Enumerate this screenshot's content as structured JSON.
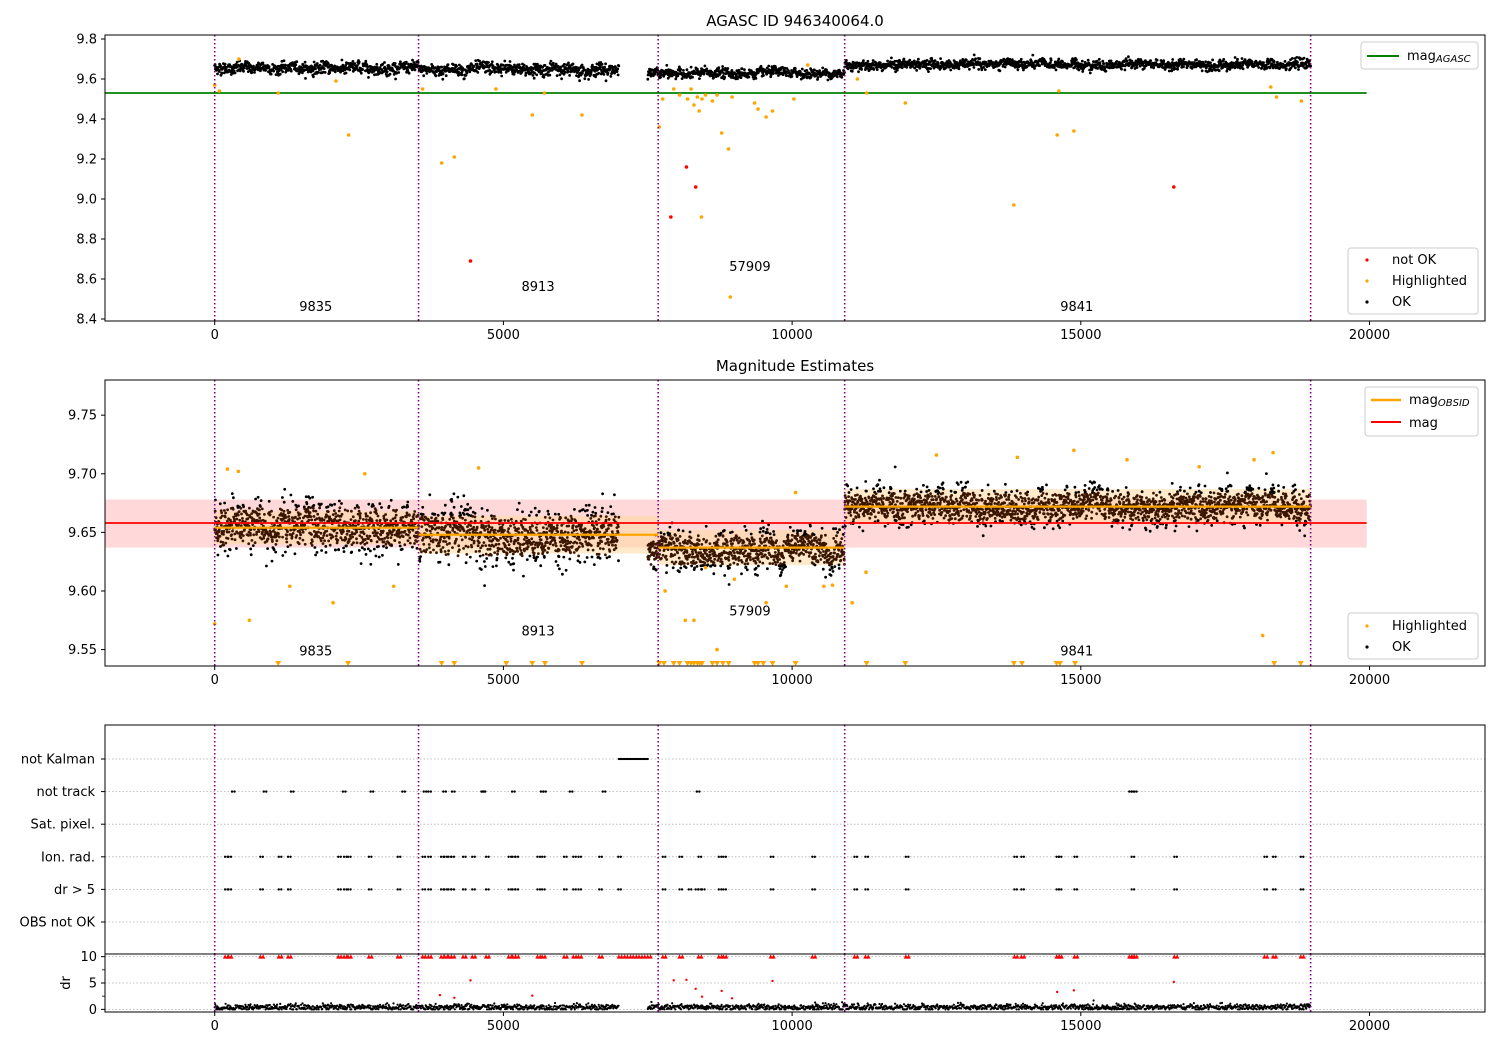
{
  "colors": {
    "ok": "#000000",
    "highlighted": "#ffa500",
    "not_ok": "#ff0000",
    "mag_agasc": "#008000",
    "mag_obsid": "#ffa500",
    "mag": "#ff0000",
    "obsid_boundary": "#800080",
    "band": "#ffc0c0",
    "band_obsid": "#ffd9a0"
  },
  "chart_data": [
    {
      "type": "scatter",
      "title": "AGASC ID 946340064.0",
      "xlabel": "",
      "ylabel": "",
      "xlim": [
        -1900,
        22000
      ],
      "ylim": [
        8.39,
        9.82
      ],
      "x_ticks": [
        0,
        5000,
        10000,
        15000,
        20000
      ],
      "x_tick_labels": [
        "0",
        "5000",
        "10000",
        "15000",
        "20000"
      ],
      "y_ticks": [
        8.4,
        8.6,
        8.8,
        9.0,
        9.2,
        9.4,
        9.6,
        9.8
      ],
      "y_tick_labels": [
        "8.4",
        "8.6",
        "8.8",
        "9.0",
        "9.2",
        "9.4",
        "9.6",
        "9.8"
      ],
      "obsid_boundaries": [
        0,
        3530,
        7680,
        10910,
        18980
      ],
      "obsid_labels": [
        {
          "text": "9835",
          "x": 1750,
          "y": 8.44
        },
        {
          "text": "8913",
          "x": 5600,
          "y": 8.54
        },
        {
          "text": "57909",
          "x": 9270,
          "y": 8.64
        },
        {
          "text": "9841",
          "x": 14930,
          "y": 8.44
        }
      ],
      "reference_lines": [
        {
          "name": "mag$_{AGASC}$",
          "y": 9.53,
          "x_range": [
            -1900,
            19950
          ],
          "color": "#008000"
        }
      ],
      "ok_segments": [
        {
          "x": [
            0,
            3530
          ],
          "mean": 9.655,
          "spread": 0.025
        },
        {
          "x": [
            3530,
            7000
          ],
          "mean": 9.648,
          "spread": 0.028
        },
        {
          "x": [
            7500,
            10910
          ],
          "mean": 9.628,
          "spread": 0.022
        },
        {
          "x": [
            10910,
            18980
          ],
          "mean": 9.672,
          "spread": 0.022
        }
      ],
      "series": [
        {
          "name": "not OK",
          "color": "#ff0000",
          "points": [
            [
              4430,
              8.69
            ],
            [
              7900,
              8.91
            ],
            [
              8170,
              9.16
            ],
            [
              8330,
              9.06
            ],
            [
              16610,
              9.06
            ]
          ]
        },
        {
          "name": "Highlighted",
          "color": "#ffa500",
          "points": [
            [
              0,
              9.57
            ],
            [
              80,
              9.54
            ],
            [
              420,
              9.7
            ],
            [
              1100,
              9.53
            ],
            [
              2100,
              9.59
            ],
            [
              2320,
              9.32
            ],
            [
              3600,
              9.55
            ],
            [
              3930,
              9.18
            ],
            [
              4150,
              9.21
            ],
            [
              4870,
              9.55
            ],
            [
              5500,
              9.42
            ],
            [
              5710,
              9.53
            ],
            [
              6360,
              9.42
            ],
            [
              7700,
              9.36
            ],
            [
              7760,
              9.5
            ],
            [
              7950,
              9.55
            ],
            [
              8050,
              9.52
            ],
            [
              8190,
              9.5
            ],
            [
              8250,
              9.55
            ],
            [
              8300,
              9.47
            ],
            [
              8360,
              9.51
            ],
            [
              8390,
              9.44
            ],
            [
              8440,
              9.5
            ],
            [
              8500,
              9.52
            ],
            [
              8620,
              9.49
            ],
            [
              8700,
              9.52
            ],
            [
              8780,
              9.33
            ],
            [
              8900,
              9.25
            ],
            [
              8960,
              9.51
            ],
            [
              9350,
              9.48
            ],
            [
              9410,
              9.45
            ],
            [
              9550,
              9.41
            ],
            [
              9660,
              9.44
            ],
            [
              10030,
              9.5
            ],
            [
              10270,
              9.67
            ],
            [
              11130,
              9.6
            ],
            [
              11290,
              9.53
            ],
            [
              11960,
              9.48
            ],
            [
              13840,
              8.97
            ],
            [
              14590,
              9.32
            ],
            [
              14880,
              9.34
            ],
            [
              14620,
              9.54
            ],
            [
              18290,
              9.56
            ],
            [
              18390,
              9.51
            ],
            [
              18820,
              9.49
            ],
            [
              8430,
              8.91
            ],
            [
              8930,
              8.51
            ]
          ]
        }
      ],
      "legend": {
        "position": "upper-right",
        "entries": [
          "mag$_{AGASC}$"
        ]
      },
      "legend2": {
        "position": "lower-right",
        "entries": [
          "not OK",
          "Highlighted",
          "OK"
        ]
      }
    },
    {
      "type": "scatter",
      "title": "Magnitude Estimates",
      "xlabel": "",
      "ylabel": "",
      "xlim": [
        -1900,
        22000
      ],
      "ylim": [
        9.536,
        9.78
      ],
      "x_ticks": [
        0,
        5000,
        10000,
        15000,
        20000
      ],
      "x_tick_labels": [
        "0",
        "5000",
        "10000",
        "15000",
        "20000"
      ],
      "y_ticks": [
        9.55,
        9.6,
        9.65,
        9.7,
        9.75
      ],
      "y_tick_labels": [
        "9.55",
        "9.60",
        "9.65",
        "9.70",
        "9.75"
      ],
      "obsid_boundaries": [
        0,
        3530,
        7680,
        10910,
        18980
      ],
      "obsid_labels": [
        {
          "text": "9835",
          "x": 1750,
          "y": 9.545
        },
        {
          "text": "8913",
          "x": 5600,
          "y": 9.562
        },
        {
          "text": "57909",
          "x": 9270,
          "y": 9.579
        },
        {
          "text": "9841",
          "x": 14930,
          "y": 9.545
        }
      ],
      "mag": {
        "name": "mag",
        "y": 9.658,
        "band": [
          9.637,
          9.678
        ],
        "x_range": [
          -1900,
          19950
        ]
      },
      "mag_obsid": {
        "name": "mag$_{OBSID}$",
        "segments": [
          {
            "x": [
              0,
              3530
            ],
            "y": 9.654,
            "band": [
              9.64,
              9.668
            ]
          },
          {
            "x": [
              3530,
              7680
            ],
            "y": 9.648,
            "band": [
              9.632,
              9.664
            ]
          },
          {
            "x": [
              7680,
              10910
            ],
            "y": 9.637,
            "band": [
              9.622,
              9.652
            ]
          },
          {
            "x": [
              10910,
              18980
            ],
            "y": 9.672,
            "band": [
              9.657,
              9.687
            ]
          }
        ]
      },
      "ok_segments": [
        {
          "x": [
            0,
            3530
          ],
          "mean": 9.655,
          "spread": 0.018
        },
        {
          "x": [
            3530,
            7000
          ],
          "mean": 9.647,
          "spread": 0.019
        },
        {
          "x": [
            7500,
            10910
          ],
          "mean": 9.635,
          "spread": 0.014
        },
        {
          "x": [
            10910,
            18980
          ],
          "mean": 9.672,
          "spread": 0.013
        }
      ],
      "series": [
        {
          "name": "Highlighted",
          "color": "#ffa500",
          "points": [
            [
              0,
              9.572
            ],
            [
              220,
              9.704
            ],
            [
              410,
              9.702
            ],
            [
              600,
              9.575
            ],
            [
              1300,
              9.604
            ],
            [
              2050,
              9.59
            ],
            [
              2600,
              9.7
            ],
            [
              3100,
              9.604
            ],
            [
              4570,
              9.705
            ],
            [
              7800,
              9.6
            ],
            [
              8150,
              9.575
            ],
            [
              8300,
              9.575
            ],
            [
              8500,
              9.62
            ],
            [
              8700,
              9.55
            ],
            [
              9000,
              9.61
            ],
            [
              9550,
              9.59
            ],
            [
              9900,
              9.604
            ],
            [
              10060,
              9.684
            ],
            [
              10550,
              9.604
            ],
            [
              10700,
              9.605
            ],
            [
              11040,
              9.59
            ],
            [
              11280,
              9.616
            ],
            [
              12500,
              9.716
            ],
            [
              13900,
              9.714
            ],
            [
              14880,
              9.72
            ],
            [
              15800,
              9.712
            ],
            [
              17050,
              9.706
            ],
            [
              18000,
              9.712
            ],
            [
              18150,
              9.562
            ],
            [
              18330,
              9.718
            ]
          ]
        },
        {
          "name": "Highlighted (below range)",
          "marker": "triangle-down",
          "color": "#ffa500",
          "points": [
            [
              1100,
              9.536
            ],
            [
              2310,
              9.536
            ],
            [
              3930,
              9.536
            ],
            [
              4150,
              9.536
            ],
            [
              5050,
              9.536
            ],
            [
              5500,
              9.536
            ],
            [
              5720,
              9.536
            ],
            [
              6360,
              9.536
            ],
            [
              7700,
              9.536
            ],
            [
              7780,
              9.536
            ],
            [
              7950,
              9.536
            ],
            [
              8050,
              9.536
            ],
            [
              8190,
              9.536
            ],
            [
              8250,
              9.536
            ],
            [
              8300,
              9.536
            ],
            [
              8360,
              9.536
            ],
            [
              8400,
              9.536
            ],
            [
              8440,
              9.536
            ],
            [
              8620,
              9.536
            ],
            [
              8700,
              9.536
            ],
            [
              8800,
              9.536
            ],
            [
              8900,
              9.536
            ],
            [
              9350,
              9.536
            ],
            [
              9410,
              9.536
            ],
            [
              9500,
              9.536
            ],
            [
              9660,
              9.536
            ],
            [
              10060,
              9.536
            ],
            [
              11290,
              9.536
            ],
            [
              11960,
              9.536
            ],
            [
              13840,
              9.536
            ],
            [
              13980,
              9.536
            ],
            [
              14580,
              9.536
            ],
            [
              14640,
              9.536
            ],
            [
              14900,
              9.536
            ],
            [
              18350,
              9.536
            ],
            [
              18810,
              9.536
            ]
          ]
        }
      ],
      "legend": {
        "position": "upper-right",
        "entries": [
          "mag$_{OBSID}$",
          "mag"
        ]
      },
      "legend2": {
        "position": "lower-right",
        "entries": [
          "Highlighted",
          "OK"
        ]
      }
    },
    {
      "type": "scatter",
      "title": "",
      "xlabel": "",
      "ylabel": "",
      "xlim": [
        -1900,
        22000
      ],
      "categories": [
        "not Kalman",
        "not track",
        "Sat. pixel.",
        "Ion. rad.",
        "dr > 5",
        "OBS not OK"
      ],
      "obsid_boundaries": [
        0,
        3530,
        7680,
        10910,
        18980
      ],
      "flags": {
        "not Kalman": [
          [
            7000,
            7520
          ]
        ],
        "not track": [
          300,
          850,
          1320,
          2220,
          2700,
          3250,
          3620,
          3700,
          3960,
          4110,
          4620,
          4640,
          5150,
          5650,
          5690,
          6150,
          6720,
          8350,
          15840,
          15880,
          15920
        ],
        "Sat. pixel.": [],
        "Ion. rad.": [
          180,
          240,
          790,
          1110,
          1270,
          2140,
          2240,
          2310,
          2670,
          3170,
          3600,
          3700,
          3920,
          3980,
          4050,
          4100,
          4300,
          4460,
          4700,
          5090,
          5160,
          5210,
          5590,
          5670,
          6050,
          6210,
          6300,
          6660,
          6990,
          7760,
          8050,
          8380,
          8730,
          8810,
          9630,
          10350,
          11080,
          11270,
          11970,
          13850,
          13970,
          14580,
          14620,
          14890,
          15880,
          16620,
          18180,
          18330,
          18810
        ],
        "dr > 5": [
          180,
          240,
          790,
          1110,
          1270,
          2140,
          2240,
          2310,
          2670,
          3170,
          3600,
          3700,
          3920,
          3980,
          4050,
          4100,
          4300,
          4460,
          4700,
          5090,
          5160,
          5210,
          5590,
          5670,
          6050,
          6210,
          6300,
          6660,
          6990,
          7760,
          8050,
          8210,
          8330,
          8380,
          8440,
          8730,
          8810,
          9630,
          10350,
          11080,
          11270,
          11970,
          13850,
          13970,
          14580,
          14620,
          14890,
          15880,
          16620,
          18180,
          18330,
          18810
        ],
        "OBS not OK": []
      }
    },
    {
      "type": "scatter",
      "title": "",
      "xlabel": "",
      "ylabel": "dr",
      "xlim": [
        -1900,
        22000
      ],
      "ylim": [
        -0.5,
        10.5
      ],
      "x_ticks": [
        0,
        5000,
        10000,
        15000,
        20000
      ],
      "x_tick_labels": [
        "0",
        "5000",
        "10000",
        "15000",
        "20000"
      ],
      "y_ticks": [
        0,
        5,
        10
      ],
      "y_tick_labels": [
        "0",
        "5",
        "10"
      ],
      "obsid_boundaries": [
        0,
        3530,
        7680,
        10910,
        18980
      ],
      "baseline": {
        "mean": 0.4,
        "spread": 0.3
      },
      "clipped_at_10": [
        180,
        240,
        790,
        1110,
        1270,
        2140,
        2240,
        2310,
        2670,
        3170,
        3600,
        3700,
        3920,
        3980,
        4050,
        4100,
        4300,
        4460,
        4700,
        5090,
        5160,
        5210,
        5590,
        5670,
        6050,
        6210,
        6300,
        6660,
        7000,
        7100,
        7200,
        7300,
        7400,
        7500,
        7760,
        8050,
        8380,
        8730,
        8810,
        9630,
        10350,
        11080,
        11270,
        11970,
        13850,
        13970,
        14580,
        14620,
        14890,
        15840,
        15880,
        15920,
        16620,
        18180,
        18330,
        18810
      ],
      "outliers": [
        [
          4430,
          5.5
        ],
        [
          3900,
          2.7
        ],
        [
          4150,
          2.2
        ],
        [
          5500,
          2.6
        ],
        [
          7950,
          5.5
        ],
        [
          8170,
          5.6
        ],
        [
          8330,
          3.9
        ],
        [
          8440,
          2.4
        ],
        [
          8780,
          3.5
        ],
        [
          8960,
          2.1
        ],
        [
          9660,
          5.4
        ],
        [
          14590,
          3.3
        ],
        [
          14880,
          3.6
        ],
        [
          16610,
          5.2
        ]
      ]
    }
  ]
}
